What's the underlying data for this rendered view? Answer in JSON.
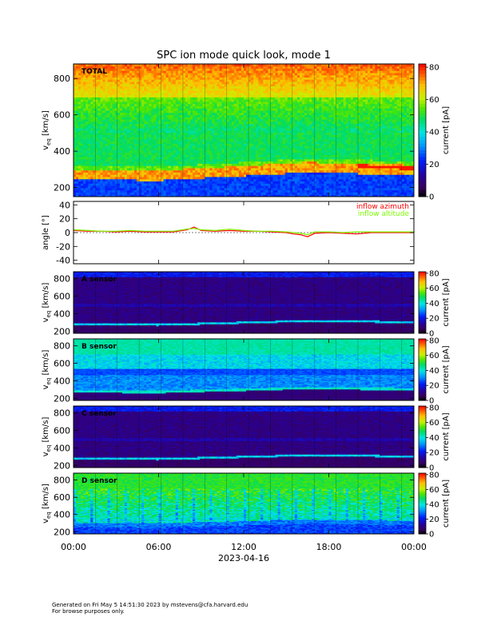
{
  "chart_data": {
    "title": "SPC ion mode quick look, mode 1",
    "x_axis": {
      "ticks": [
        "00:00",
        "06:00",
        "12:00",
        "18:00",
        "00:00"
      ],
      "tick_hours": [
        0,
        6,
        12,
        18,
        24
      ],
      "date_label": "2023-04-16",
      "range_hours": [
        0,
        24
      ]
    },
    "panels": [
      {
        "type": "heatmap",
        "label": "TOTAL",
        "ylabel_main": "v",
        "ylabel_sub": "eq",
        "ylabel_units": "[km/s]",
        "yticks": [
          200,
          400,
          600,
          800
        ],
        "ylim": [
          150,
          880
        ],
        "colorbar": {
          "label": "current [pA]",
          "ticks": [
            0,
            20,
            40,
            60,
            80
          ],
          "range": [
            0,
            82
          ]
        },
        "profile": "total",
        "peak_velocity_kms": [
          [
            0,
            280
          ],
          [
            6,
            275
          ],
          [
            12,
            300
          ],
          [
            16.5,
            320
          ],
          [
            24,
            305
          ]
        ]
      },
      {
        "type": "line",
        "ylabel": "angle [°]",
        "yticks": [
          -40,
          -20,
          0,
          20,
          40
        ],
        "ylim": [
          -45,
          45
        ],
        "series": [
          {
            "name": "inflow azimuth",
            "color": "#ff0000",
            "x": [
              0,
              1,
              2,
              3,
              4,
              5,
              6,
              7,
              8,
              8.5,
              9,
              10,
              11,
              12,
              13,
              14,
              15,
              15.5,
              16,
              16.5,
              17,
              18,
              19,
              20,
              21,
              22,
              23,
              24
            ],
            "y": [
              3,
              2,
              2,
              1,
              2,
              1,
              1,
              1,
              4,
              8,
              3,
              2,
              3,
              2,
              2,
              1,
              0,
              -2,
              -3,
              -6,
              -1,
              0,
              -1,
              -2,
              0,
              0,
              0,
              0
            ]
          },
          {
            "name": "inflow altitude",
            "color": "#7cfc00",
            "x": [
              0,
              1,
              2,
              3,
              4,
              5,
              6,
              7,
              8,
              8.5,
              9,
              10,
              11,
              12,
              13,
              14,
              15,
              15.5,
              16,
              16.5,
              17,
              18,
              19,
              20,
              21,
              22,
              23,
              24
            ],
            "y": [
              4,
              3,
              2,
              2,
              3,
              2,
              2,
              2,
              5,
              6,
              4,
              3,
              5,
              3,
              2,
              2,
              1,
              0,
              -1,
              -3,
              1,
              1,
              0,
              1,
              1,
              1,
              1,
              1
            ]
          }
        ]
      },
      {
        "type": "heatmap",
        "label": "A sensor",
        "ylabel_main": "v",
        "ylabel_sub": "eq",
        "ylabel_units": "[km/s]",
        "yticks": [
          200,
          400,
          600,
          800
        ],
        "ylim": [
          175,
          880
        ],
        "colorbar": {
          "label": "current [pA]",
          "ticks": [
            0,
            20,
            40,
            60,
            80
          ],
          "range": [
            0,
            82
          ]
        },
        "profile": "sensorA"
      },
      {
        "type": "heatmap",
        "label": "B sensor",
        "ylabel_main": "v",
        "ylabel_sub": "eq",
        "ylabel_units": "[km/s]",
        "yticks": [
          200,
          400,
          600,
          800
        ],
        "ylim": [
          175,
          880
        ],
        "colorbar": {
          "label": "current [pA]",
          "ticks": [
            0,
            20,
            40,
            60,
            80
          ],
          "range": [
            0,
            82
          ]
        },
        "profile": "sensorB"
      },
      {
        "type": "heatmap",
        "label": "C sensor",
        "ylabel_main": "v",
        "ylabel_sub": "eq",
        "ylabel_units": "[km/s]",
        "yticks": [
          200,
          400,
          600,
          800
        ],
        "ylim": [
          175,
          880
        ],
        "colorbar": {
          "label": "current [pA]",
          "ticks": [
            0,
            20,
            40,
            60,
            80
          ],
          "range": [
            0,
            82
          ]
        },
        "profile": "sensorA"
      },
      {
        "type": "heatmap",
        "label": "D sensor",
        "ylabel_main": "v",
        "ylabel_sub": "eq",
        "ylabel_units": "[km/s]",
        "yticks": [
          200,
          400,
          600,
          800
        ],
        "ylim": [
          175,
          880
        ],
        "colorbar": {
          "label": "current [pA]",
          "ticks": [
            0,
            20,
            40,
            60,
            80
          ],
          "range": [
            0,
            82
          ]
        },
        "profile": "sensorD"
      }
    ]
  },
  "footer": {
    "line1": "Generated on Fri May  5 14:51:30 2023 by mstevens@cfa.harvard.edu",
    "line2": "For browse purposes only."
  }
}
